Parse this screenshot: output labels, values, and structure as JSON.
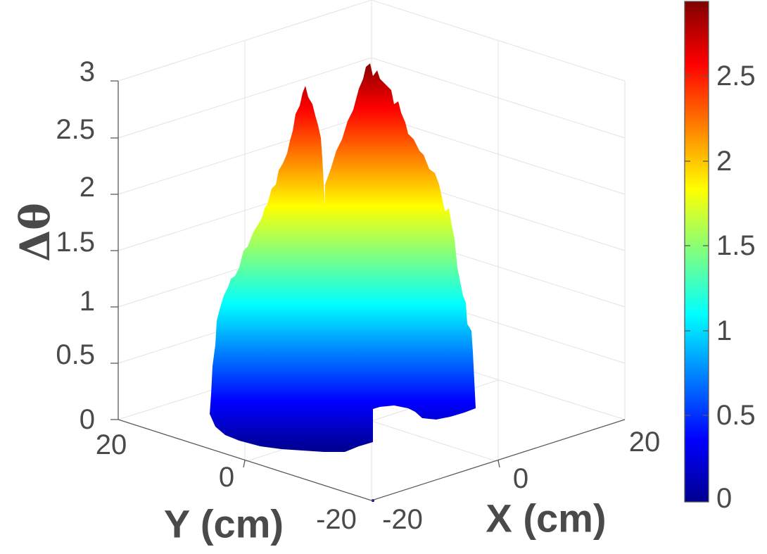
{
  "chart_data": {
    "type": "surface3d",
    "title": "",
    "xlabel": "X (cm)",
    "ylabel": "Y (cm)",
    "zlabel": "Δθ",
    "xticks": [
      "-20",
      "0",
      "20"
    ],
    "yticks": [
      "-20",
      "0",
      "20"
    ],
    "zticks": [
      "0",
      "0.5",
      "1",
      "1.5",
      "2",
      "2.5",
      "3"
    ],
    "xlim": [
      -20,
      20
    ],
    "ylim": [
      -20,
      20
    ],
    "zlim": [
      0,
      3
    ],
    "grid": true,
    "colormap": "jet",
    "colorbar": {
      "range": [
        0,
        2.95
      ],
      "ticks": [
        "0",
        "0.5",
        "1",
        "1.5",
        "2",
        "2.5"
      ]
    },
    "series": [
      {
        "peak_x": -3,
        "peak_y": 3,
        "peak_z": 2.95,
        "radius": 8
      },
      {
        "peak_x": 3,
        "peak_y": -3,
        "peak_z": 2.9,
        "radius": 8
      }
    ],
    "colors": {
      "jet": [
        "#00008f",
        "#0000ff",
        "#00ffff",
        "#ffff00",
        "#ff0000",
        "#800000"
      ],
      "axis": "#5a5a5a",
      "grid": "#e3e3e3",
      "text": "#4a4a4a"
    }
  }
}
